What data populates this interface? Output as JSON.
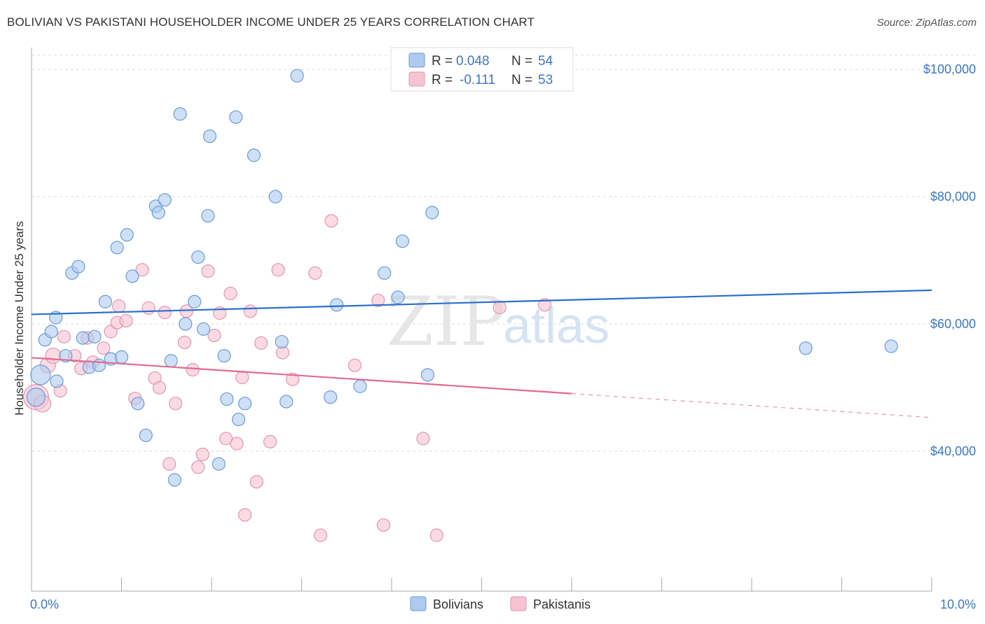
{
  "title": "BOLIVIAN VS PAKISTANI HOUSEHOLDER INCOME UNDER 25 YEARS CORRELATION CHART",
  "source": "Source: ZipAtlas.com",
  "watermark": {
    "zip": "ZIP",
    "atlas": "atlas"
  },
  "colors": {
    "bolivian_fill": "#aecbef",
    "bolivian_stroke": "#6b9bd9",
    "bolivian_line": "#2b6fcc",
    "pakistani_fill": "#f6c3d2",
    "pakistani_stroke": "#e795b0",
    "pakistani_line": "#e06a93",
    "tick_text": "#3d78c7",
    "grid": "#dddddd"
  },
  "legend": {
    "r_label": "R =",
    "n_label": "N =",
    "bolivian_r": "0.048",
    "bolivian_n": "54",
    "pakistani_r": "-0.111",
    "pakistani_n": "53"
  },
  "bottom_legend": {
    "bolivians": "Bolivians",
    "pakistanis": "Pakistanis"
  },
  "chart_data": {
    "type": "scatter",
    "title": "BOLIVIAN VS PAKISTANI HOUSEHOLDER INCOME UNDER 25 YEARS CORRELATION CHART",
    "xlabel": "",
    "ylabel": "Householder Income Under 25 years",
    "xlim": [
      0,
      10
    ],
    "ylim": [
      20000,
      102000
    ],
    "x_ticks": [
      0,
      10
    ],
    "x_tick_labels": [
      "0.0%",
      "10.0%"
    ],
    "y_ticks": [
      40000,
      60000,
      80000,
      100000
    ],
    "y_tick_labels": [
      "$40,000",
      "$60,000",
      "$80,000",
      "$100,000"
    ],
    "grid": true,
    "legend_position": "top-center",
    "series": [
      {
        "name": "Bolivians",
        "r": 0.048,
        "n": 54,
        "trend": {
          "x": [
            0,
            10
          ],
          "y": [
            61500,
            65300
          ],
          "dashed_from_x": null
        },
        "points": [
          [
            0.1,
            52000,
            14
          ],
          [
            0.15,
            57500,
            9
          ],
          [
            0.22,
            58800,
            9
          ],
          [
            0.27,
            61000,
            9
          ],
          [
            0.28,
            51000,
            9
          ],
          [
            0.38,
            55000,
            9
          ],
          [
            0.45,
            68000,
            9
          ],
          [
            0.52,
            69000,
            9
          ],
          [
            0.57,
            57800,
            9
          ],
          [
            0.64,
            53200,
            9
          ],
          [
            0.7,
            58000,
            9
          ],
          [
            0.75,
            53500,
            9
          ],
          [
            0.82,
            63500,
            9
          ],
          [
            0.88,
            54500,
            9
          ],
          [
            0.95,
            72000,
            9
          ],
          [
            1.0,
            54800,
            9
          ],
          [
            1.06,
            74000,
            9
          ],
          [
            1.12,
            67500,
            9
          ],
          [
            1.18,
            47500,
            9
          ],
          [
            1.27,
            42500,
            9
          ],
          [
            1.38,
            78500,
            9
          ],
          [
            1.41,
            77500,
            9
          ],
          [
            1.48,
            79500,
            9
          ],
          [
            1.55,
            54200,
            9
          ],
          [
            1.59,
            35500,
            9
          ],
          [
            1.65,
            93000,
            9
          ],
          [
            1.71,
            60000,
            9
          ],
          [
            1.81,
            63500,
            9
          ],
          [
            1.85,
            70500,
            9
          ],
          [
            1.91,
            59200,
            9
          ],
          [
            1.96,
            77000,
            9
          ],
          [
            1.98,
            89500,
            9
          ],
          [
            2.08,
            38000,
            9
          ],
          [
            2.14,
            55000,
            9
          ],
          [
            2.17,
            48200,
            9
          ],
          [
            2.27,
            92500,
            9
          ],
          [
            2.3,
            45000,
            9
          ],
          [
            2.37,
            47500,
            9
          ],
          [
            2.47,
            86500,
            9
          ],
          [
            2.71,
            80000,
            9
          ],
          [
            2.78,
            57200,
            9
          ],
          [
            2.83,
            47800,
            9
          ],
          [
            2.95,
            99000,
            9
          ],
          [
            3.32,
            48500,
            9
          ],
          [
            3.39,
            63000,
            9
          ],
          [
            3.65,
            50200,
            9
          ],
          [
            3.92,
            68000,
            9
          ],
          [
            4.07,
            64200,
            9
          ],
          [
            4.12,
            73000,
            9
          ],
          [
            4.4,
            52000,
            9
          ],
          [
            4.45,
            77500,
            9
          ],
          [
            8.6,
            56200,
            9
          ],
          [
            9.55,
            56500,
            9
          ],
          [
            0.05,
            48500,
            13
          ]
        ]
      },
      {
        "name": "Pakistanis",
        "r": -0.111,
        "n": 53,
        "trend": {
          "x": [
            0,
            10
          ],
          "y": [
            54700,
            45300
          ],
          "dashed_from_x": 6.0
        },
        "points": [
          [
            0.05,
            48500,
            18
          ],
          [
            0.12,
            47500,
            12
          ],
          [
            0.18,
            53500,
            11
          ],
          [
            0.24,
            55000,
            11
          ],
          [
            0.32,
            49500,
            9
          ],
          [
            0.36,
            58000,
            9
          ],
          [
            0.48,
            55000,
            9
          ],
          [
            0.55,
            53000,
            9
          ],
          [
            0.62,
            57800,
            9
          ],
          [
            0.68,
            54000,
            9
          ],
          [
            0.8,
            56200,
            9
          ],
          [
            0.88,
            58800,
            9
          ],
          [
            0.95,
            60200,
            9
          ],
          [
            0.97,
            62800,
            9
          ],
          [
            1.05,
            60500,
            9
          ],
          [
            1.15,
            48300,
            9
          ],
          [
            1.23,
            68500,
            9
          ],
          [
            1.3,
            62500,
            9
          ],
          [
            1.37,
            51500,
            9
          ],
          [
            1.42,
            50000,
            9
          ],
          [
            1.48,
            61800,
            9
          ],
          [
            1.53,
            38000,
            9
          ],
          [
            1.6,
            47500,
            9
          ],
          [
            1.7,
            57100,
            9
          ],
          [
            1.72,
            62000,
            9
          ],
          [
            1.79,
            52800,
            9
          ],
          [
            1.85,
            37500,
            9
          ],
          [
            1.9,
            39500,
            9
          ],
          [
            1.96,
            68300,
            9
          ],
          [
            2.03,
            58200,
            9
          ],
          [
            2.09,
            61700,
            9
          ],
          [
            2.16,
            42000,
            9
          ],
          [
            2.21,
            64800,
            9
          ],
          [
            2.28,
            41200,
            9
          ],
          [
            2.34,
            51600,
            9
          ],
          [
            2.37,
            30000,
            9
          ],
          [
            2.43,
            62000,
            9
          ],
          [
            2.5,
            35200,
            9
          ],
          [
            2.55,
            57000,
            9
          ],
          [
            2.65,
            41500,
            9
          ],
          [
            2.74,
            68500,
            9
          ],
          [
            2.79,
            55500,
            9
          ],
          [
            2.9,
            51300,
            9
          ],
          [
            3.15,
            68000,
            9
          ],
          [
            3.21,
            26800,
            9
          ],
          [
            3.33,
            76200,
            9
          ],
          [
            3.59,
            53500,
            9
          ],
          [
            3.85,
            63700,
            9
          ],
          [
            3.91,
            28400,
            9
          ],
          [
            4.35,
            42000,
            9
          ],
          [
            4.5,
            26800,
            9
          ],
          [
            5.2,
            62600,
            9
          ],
          [
            5.7,
            63000,
            9
          ]
        ]
      }
    ]
  }
}
